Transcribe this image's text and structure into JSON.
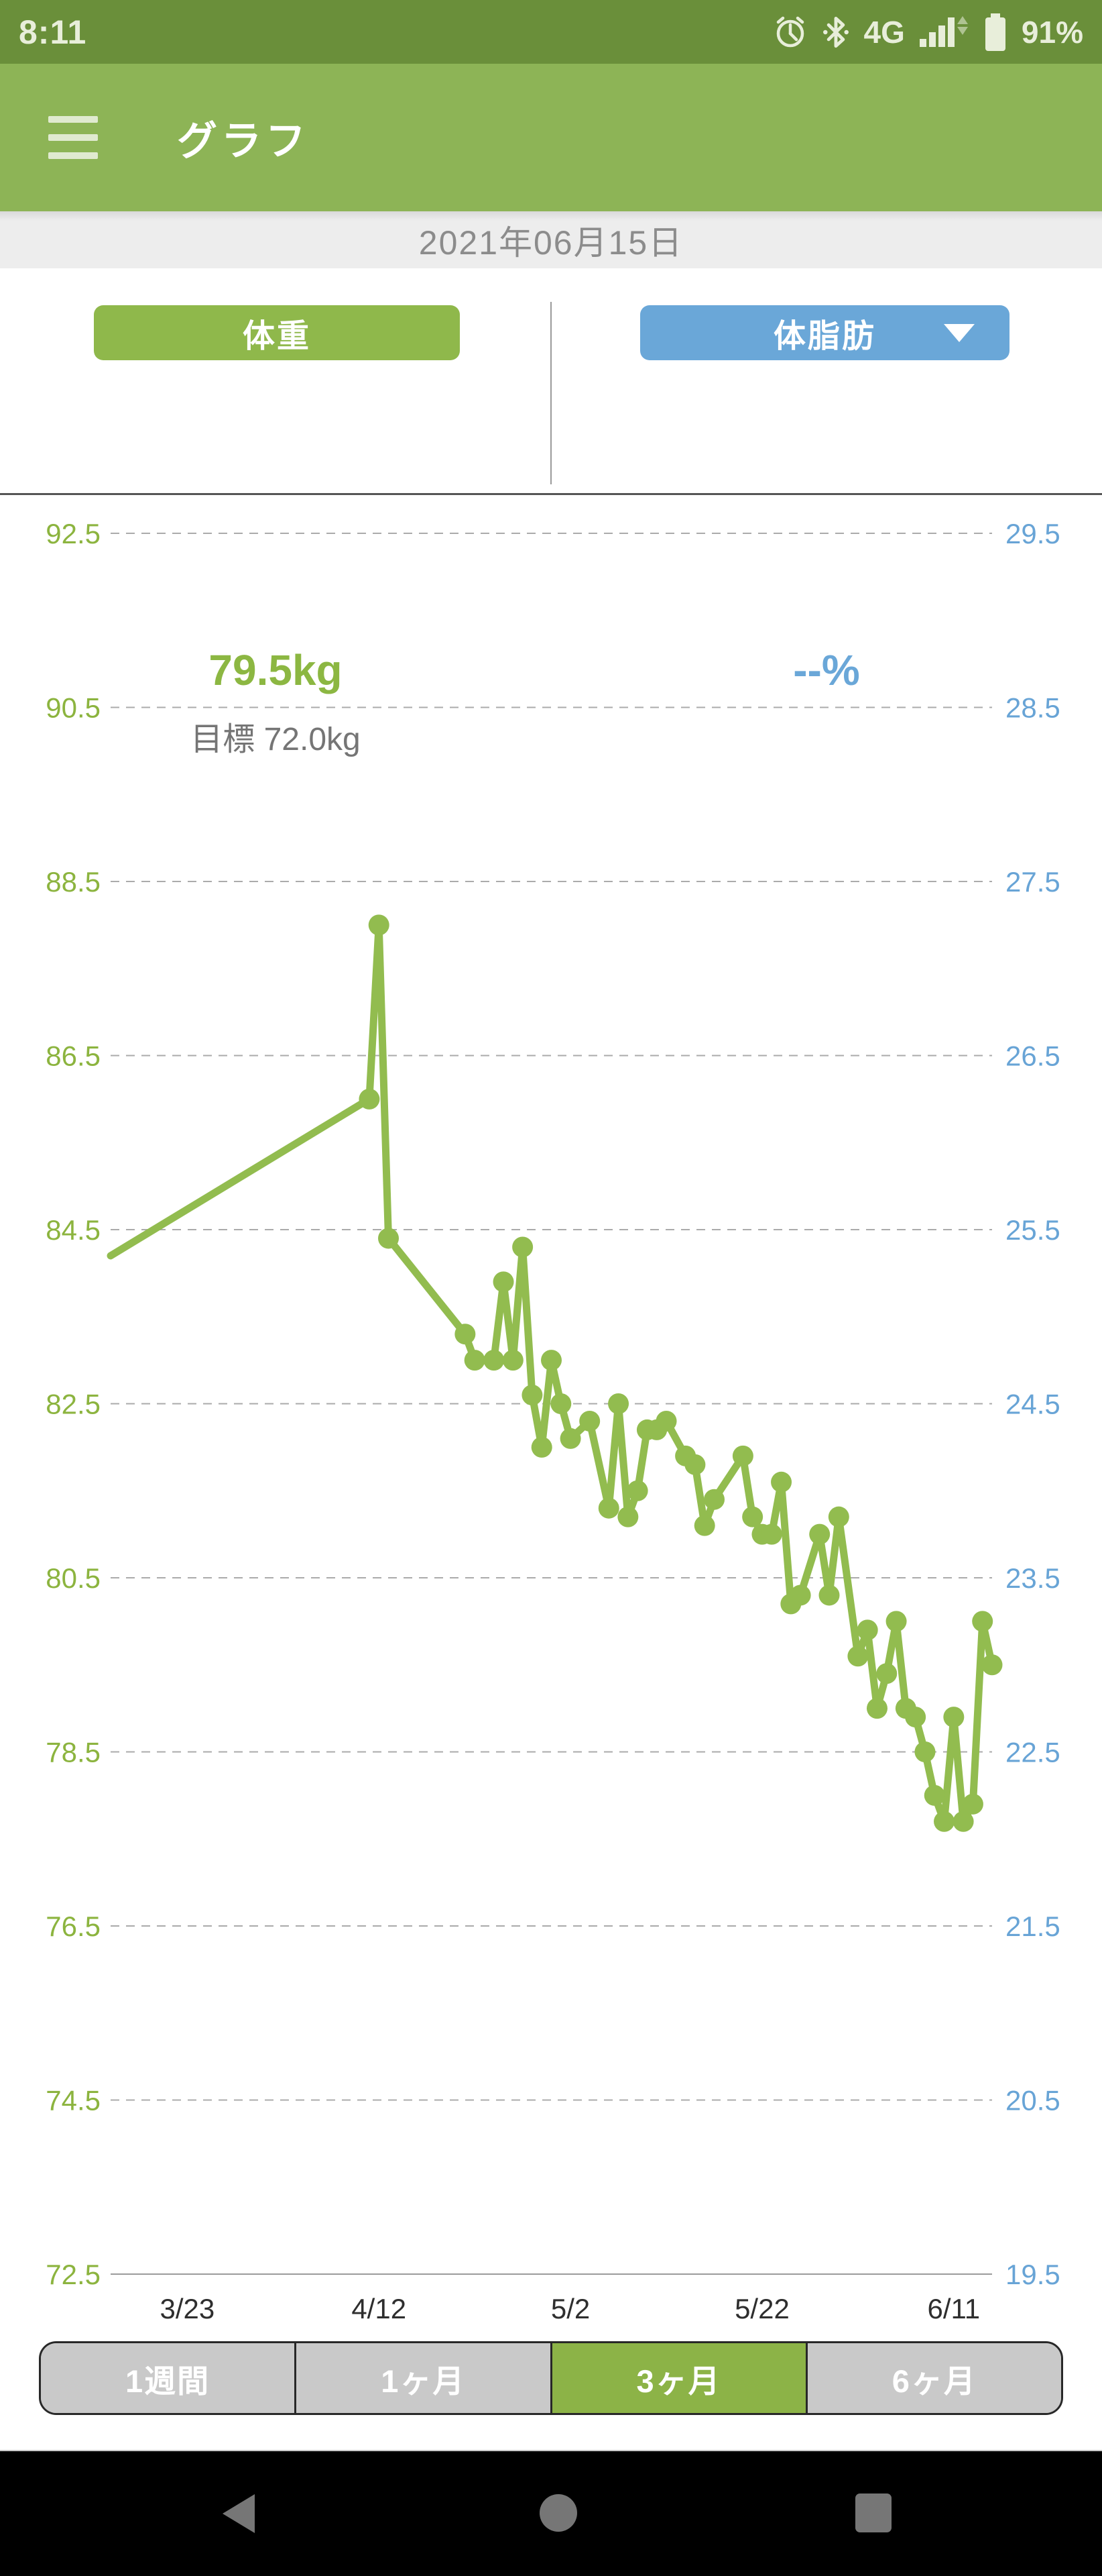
{
  "status_bar": {
    "time": "8:11",
    "network": "4G",
    "battery": "91%",
    "icons": [
      "alarm-icon",
      "bluetooth-icon",
      "signal-icon",
      "battery-icon"
    ],
    "bg_color": "#6a8f3a"
  },
  "header": {
    "title": "グラフ",
    "menu_icon": "hamburger-menu-icon",
    "bg_color": "#8db456"
  },
  "date_bar": {
    "date": "2021年06月15日"
  },
  "metrics": {
    "weight": {
      "label": "体重",
      "value": "79.5kg",
      "goal": "目標 72.0kg",
      "accent_color": "#8fb84b"
    },
    "body_fat": {
      "label": "体脂肪",
      "value": "--%",
      "dropdown_icon": "dropdown-triangle-icon",
      "accent_color": "#6aa7d8"
    }
  },
  "chart_data": {
    "type": "line",
    "series_name": "体重 (kg)",
    "points": [
      [
        "3/15",
        84.2
      ],
      [
        "4/11",
        86.0
      ],
      [
        "4/12",
        88.0
      ],
      [
        "4/13",
        84.4
      ],
      [
        "4/21",
        83.3
      ],
      [
        "4/22",
        83.0
      ],
      [
        "4/24",
        83.0
      ],
      [
        "4/25",
        83.9
      ],
      [
        "4/26",
        83.0
      ],
      [
        "4/27",
        84.3
      ],
      [
        "4/28",
        82.6
      ],
      [
        "4/29",
        82.0
      ],
      [
        "4/30",
        83.0
      ],
      [
        "5/1",
        82.5
      ],
      [
        "5/2",
        82.1
      ],
      [
        "5/4",
        82.3
      ],
      [
        "5/6",
        81.3
      ],
      [
        "5/7",
        82.5
      ],
      [
        "5/8",
        81.2
      ],
      [
        "5/9",
        81.5
      ],
      [
        "5/10",
        82.2
      ],
      [
        "5/11",
        82.2
      ],
      [
        "5/12",
        82.3
      ],
      [
        "5/14",
        81.9
      ],
      [
        "5/15",
        81.8
      ],
      [
        "5/16",
        81.1
      ],
      [
        "5/17",
        81.4
      ],
      [
        "5/20",
        81.9
      ],
      [
        "5/21",
        81.2
      ],
      [
        "5/22",
        81.0
      ],
      [
        "5/23",
        81.0
      ],
      [
        "5/24",
        81.6
      ],
      [
        "5/25",
        80.2
      ],
      [
        "5/26",
        80.3
      ],
      [
        "5/28",
        81.0
      ],
      [
        "5/29",
        80.3
      ],
      [
        "5/30",
        81.2
      ],
      [
        "6/1",
        79.6
      ],
      [
        "6/2",
        79.9
      ],
      [
        "6/3",
        79.0
      ],
      [
        "6/4",
        79.4
      ],
      [
        "6/5",
        80.0
      ],
      [
        "6/6",
        79.0
      ],
      [
        "6/7",
        78.9
      ],
      [
        "6/8",
        78.5
      ],
      [
        "6/9",
        78.0
      ],
      [
        "6/10",
        77.7
      ],
      [
        "6/11",
        78.9
      ],
      [
        "6/12",
        77.7
      ],
      [
        "6/13",
        77.9
      ],
      [
        "6/14",
        80.0
      ],
      [
        "6/15",
        79.5
      ]
    ],
    "x_tick_labels": [
      "3/23",
      "4/12",
      "5/2",
      "5/22",
      "6/11"
    ],
    "x_range": [
      "3/15",
      "6/15"
    ],
    "left_axis": {
      "unit": "kg",
      "ticks": [
        92.5,
        90.5,
        88.5,
        86.5,
        84.5,
        82.5,
        80.5,
        78.5,
        76.5,
        74.5,
        72.5
      ],
      "color": "#8cb43f"
    },
    "right_axis": {
      "unit": "%",
      "ticks": [
        29.5,
        28.5,
        27.5,
        26.5,
        25.5,
        24.5,
        23.5,
        22.5,
        21.5,
        20.5,
        19.5
      ],
      "color": "#68a4d6"
    },
    "grid": "horizontal-dashed",
    "line_color": "#92bc4f",
    "x_label_color": "#2e2e2e"
  },
  "period_selector": {
    "options": [
      "1週間",
      "1ヶ月",
      "3ヶ月",
      "6ヶ月"
    ],
    "selected_index": 2,
    "selected_color": "#8cb347"
  },
  "nav_bar": {
    "icons": [
      "back-icon",
      "home-icon",
      "recents-icon"
    ]
  }
}
